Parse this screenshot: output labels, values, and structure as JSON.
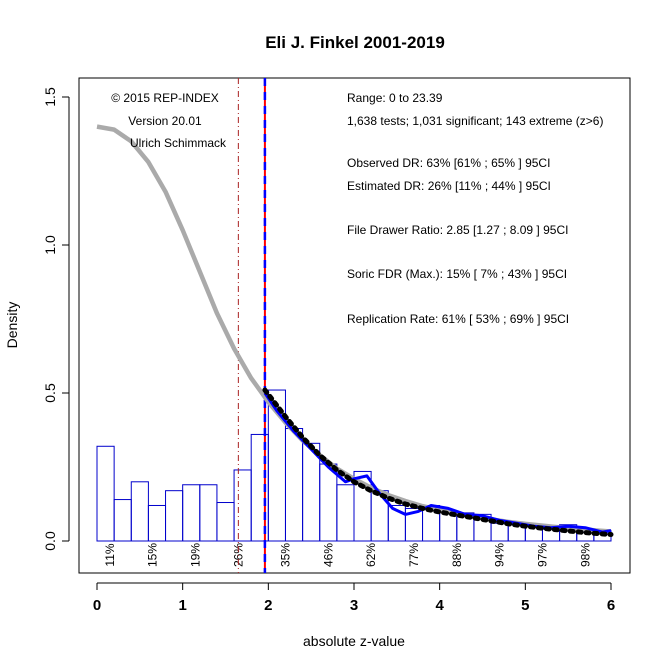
{
  "chart_data": {
    "type": "bar",
    "title": "Eli J. Finkel 2001-2019",
    "xlabel": "absolute z-value",
    "ylabel": "Density",
    "xlim": [
      0,
      6
    ],
    "ylim": [
      0,
      1.5
    ],
    "x_ticks": [
      "0",
      "1",
      "2",
      "3",
      "4",
      "5",
      "6"
    ],
    "y_ticks": [
      "0.0",
      "0.5",
      "1.0",
      "1.5"
    ],
    "x_tick_values": [
      0,
      1,
      2,
      3,
      4,
      5,
      6
    ],
    "y_tick_values": [
      0,
      0.5,
      1.0,
      1.5
    ],
    "histogram": {
      "bin_width": 0.2,
      "bin_starts": [
        0.0,
        0.2,
        0.4,
        0.6,
        0.8,
        1.0,
        1.2,
        1.4,
        1.6,
        1.8,
        2.0,
        2.2,
        2.4,
        2.6,
        2.8,
        3.0,
        3.2,
        3.4,
        3.6,
        3.8,
        4.0,
        4.2,
        4.4,
        4.6,
        4.8,
        5.0,
        5.2,
        5.4,
        5.6,
        5.8
      ],
      "densities": [
        0.32,
        0.14,
        0.2,
        0.12,
        0.17,
        0.19,
        0.19,
        0.13,
        0.24,
        0.36,
        0.51,
        0.38,
        0.33,
        0.26,
        0.19,
        0.235,
        0.17,
        0.12,
        0.11,
        0.12,
        0.1,
        0.095,
        0.09,
        0.06,
        0.055,
        0.05,
        0.04,
        0.055,
        0.03,
        0.035
      ]
    },
    "power_labels": [
      "11%",
      "15%",
      "19%",
      "26%",
      "35%",
      "46%",
      "62%",
      "77%",
      "88%",
      "94%",
      "97%",
      "98%"
    ],
    "power_label_x": [
      0.15,
      0.65,
      1.15,
      1.65,
      2.2,
      2.7,
      3.2,
      3.7,
      4.2,
      4.7,
      5.2,
      5.7
    ],
    "significance_line_x": 1.96,
    "dashdot_line_x": 1.65,
    "gray_curve": {
      "x": [
        0,
        0.2,
        0.4,
        0.6,
        0.8,
        1.0,
        1.2,
        1.4,
        1.6,
        1.8,
        2.0,
        2.2,
        2.4,
        2.6,
        2.8,
        3.0,
        3.2,
        3.4,
        3.6,
        3.8,
        4.0,
        4.2,
        4.4,
        4.6,
        4.8,
        5.0,
        5.2,
        5.4,
        5.6,
        5.8,
        6.0
      ],
      "y": [
        1.4,
        1.39,
        1.35,
        1.28,
        1.18,
        1.05,
        0.91,
        0.77,
        0.65,
        0.55,
        0.47,
        0.4,
        0.34,
        0.29,
        0.245,
        0.21,
        0.18,
        0.155,
        0.135,
        0.118,
        0.104,
        0.092,
        0.082,
        0.073,
        0.065,
        0.058,
        0.052,
        0.046,
        0.041,
        0.036,
        0.032
      ]
    },
    "blue_curve": {
      "x": [
        1.96,
        2.1,
        2.3,
        2.5,
        2.7,
        2.9,
        3.0,
        3.15,
        3.3,
        3.45,
        3.6,
        3.75,
        3.9,
        4.1,
        4.3,
        4.5,
        4.7,
        4.9,
        5.1,
        5.3,
        5.5,
        5.7,
        5.9,
        6.0
      ],
      "y": [
        0.5,
        0.44,
        0.37,
        0.31,
        0.25,
        0.2,
        0.21,
        0.22,
        0.16,
        0.11,
        0.09,
        0.1,
        0.12,
        0.11,
        0.09,
        0.085,
        0.07,
        0.06,
        0.05,
        0.045,
        0.05,
        0.045,
        0.03,
        0.035
      ]
    },
    "black_dotted_curve": {
      "x": [
        1.96,
        2.2,
        2.4,
        2.6,
        2.8,
        3.0,
        3.2,
        3.4,
        3.6,
        3.8,
        4.0,
        4.2,
        4.4,
        4.6,
        4.8,
        5.0,
        5.2,
        5.4,
        5.6,
        5.8,
        6.0
      ],
      "y": [
        0.51,
        0.42,
        0.35,
        0.29,
        0.24,
        0.2,
        0.17,
        0.145,
        0.125,
        0.11,
        0.098,
        0.088,
        0.078,
        0.068,
        0.058,
        0.05,
        0.043,
        0.037,
        0.031,
        0.026,
        0.022
      ]
    },
    "annotations_left": [
      "© 2015 REP-INDEX",
      "Version 20.01",
      "Ulrich Schimmack"
    ],
    "annotations_right": [
      "Range: 0 to 23.39",
      "1,638 tests; 1,031 significant; 143 extreme (z>6)",
      "Observed DR: 63% [61% ; 65% ] 95CI",
      "Estimated DR: 26% [11% ; 44% ] 95CI",
      "File Drawer Ratio: 2.85 [1.27 ; 8.09 ] 95CI",
      "Soric FDR (Max.): 15% [ 7% ; 43% ] 95CI",
      "Replication Rate: 61% [ 53% ; 69% ] 95CI"
    ],
    "colors": {
      "bar_stroke": "#0000cc",
      "gray_curve": "#aaaaaa",
      "blue_curve": "#0000ff",
      "sig_line": "#ff0000",
      "dashdot_line": "#aa2222",
      "black_curve": "#000000"
    }
  }
}
